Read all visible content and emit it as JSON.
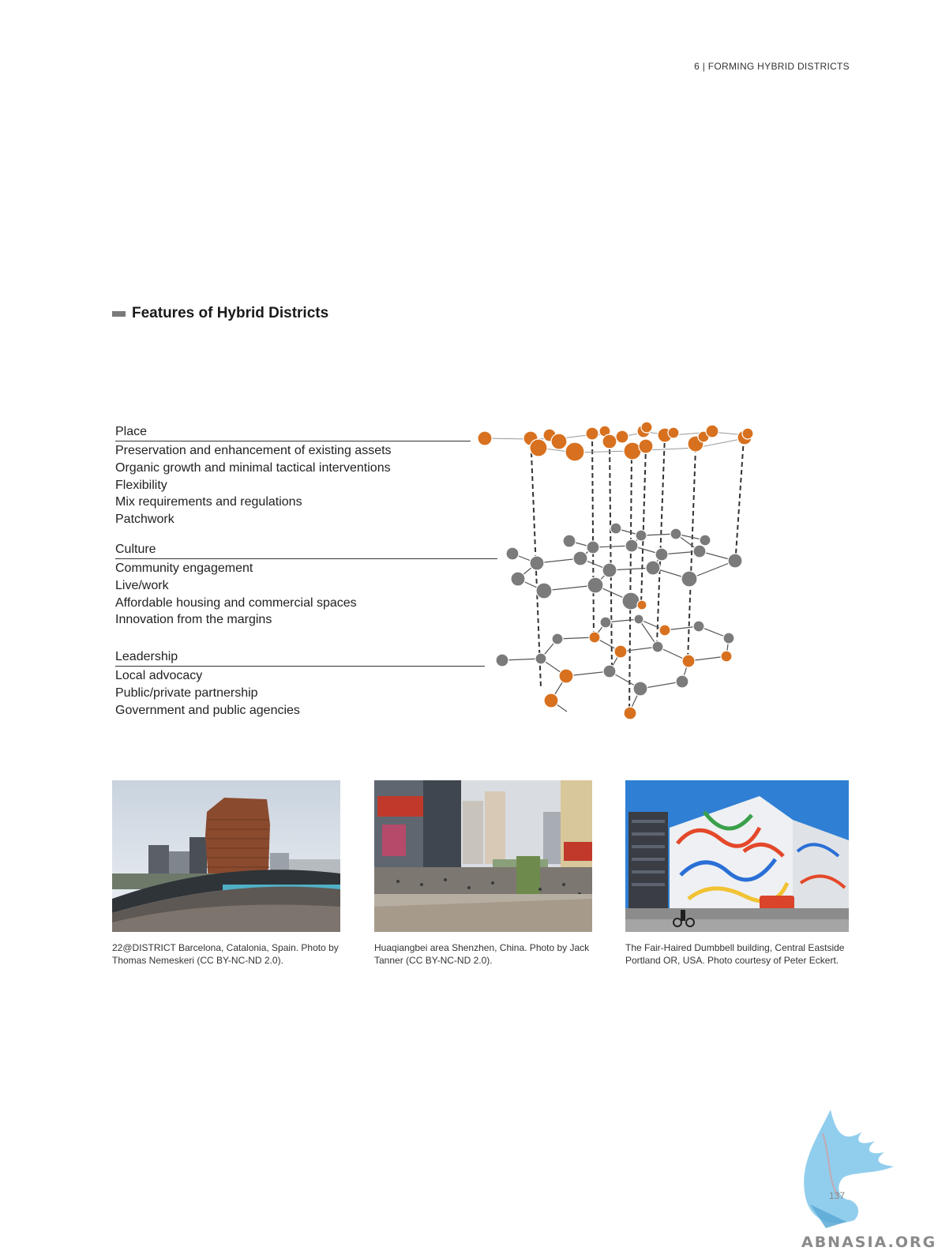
{
  "running_head": "6 | FORMING HYBRID DISTRICTS",
  "section_title": "Features of Hybrid Districts",
  "groups": [
    {
      "title": "Place",
      "items": [
        "Preservation and enhancement of existing assets",
        "Organic growth and minimal tactical interventions",
        "Flexibility",
        "Mix requirements and regulations",
        "Patchwork"
      ]
    },
    {
      "title": "Culture",
      "items": [
        "Community engagement",
        "Live/work",
        "Affordable housing and commercial spaces",
        "Innovation from the margins"
      ]
    },
    {
      "title": "Leadership",
      "items": [
        "Local advocacy",
        "Public/private partnership",
        "Government and public agencies"
      ]
    }
  ],
  "colors": {
    "orange": "#d8711f",
    "gray": "#7b7b7b",
    "line": "#333333"
  },
  "captions": [
    "22@DISTRICT Barcelona, Catalonia, Spain. Photo by Thomas Nemeskeri (CC BY-NC-ND 2.0).",
    "Huaqiangbei area Shenzhen, China. Photo by Jack Tanner (CC BY-NC-ND 2.0).",
    "The Fair-Haired Dumbbell building, Central Eastside Portland OR, USA. Photo courtesy of Peter Eckert."
  ],
  "page_number": "137",
  "watermark": "ABNASIA.ORG"
}
